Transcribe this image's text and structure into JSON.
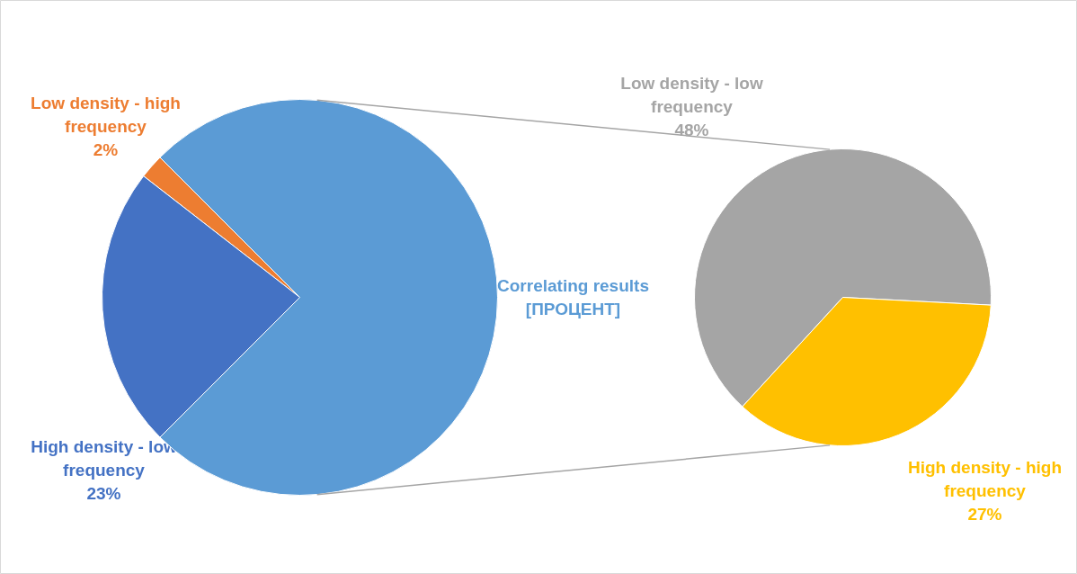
{
  "chart_data": [
    {
      "type": "pie",
      "categories": [
        "Low density - high frequency",
        "High density - low frequency",
        "Correlating results"
      ],
      "values": [
        2,
        23,
        75
      ],
      "colors": [
        "#ed7d31",
        "#4472c4",
        "#5b9bd5"
      ],
      "value_labels": [
        "2%",
        "23%",
        "[ПРОЦЕНТ]"
      ],
      "legend": false
    },
    {
      "type": "pie",
      "categories": [
        "Low density - low frequency",
        "High density - high frequency"
      ],
      "values": [
        48,
        27
      ],
      "colors": [
        "#a5a5a5",
        "#ffc000"
      ],
      "value_labels": [
        "48%",
        "27%"
      ],
      "legend": false
    }
  ]
}
